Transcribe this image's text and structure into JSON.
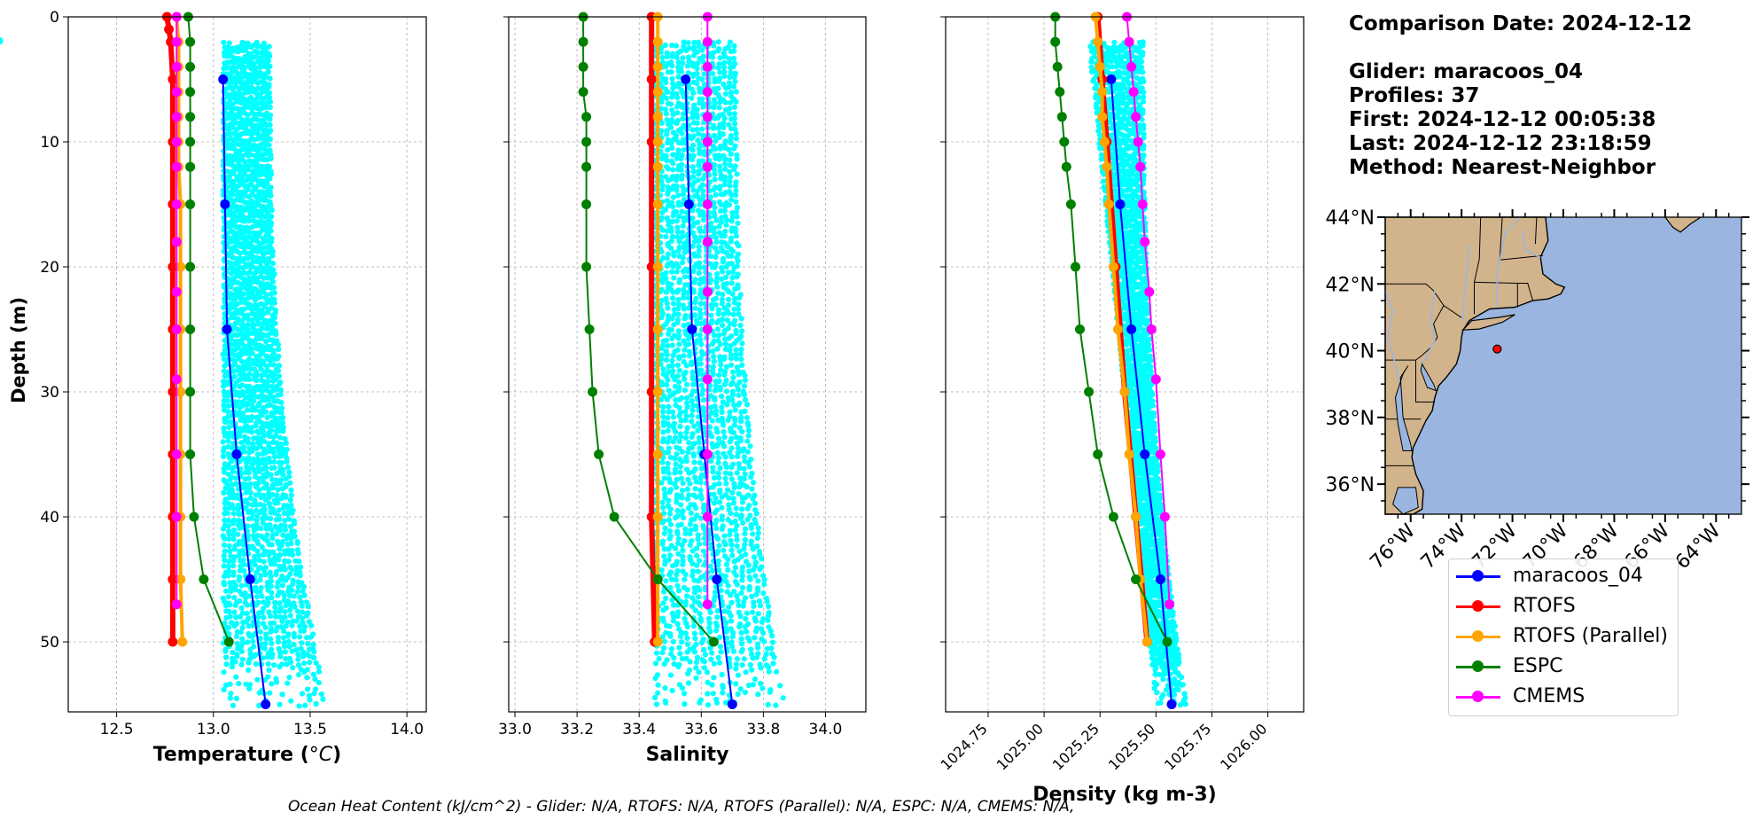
{
  "info": {
    "comparison_date": "Comparison Date: 2024-12-12",
    "glider": "Glider: maracoos_04",
    "profiles": "Profiles: 37",
    "first": "First: 2024-12-12 00:05:38",
    "last": "Last: 2024-12-12 23:18:59",
    "method": "Method: Nearest-Neighbor"
  },
  "footer": "Ocean Heat Content (kJ/cm^2) - Glider: N/A,  RTOFS: N/A,  RTOFS (Parallel): N/A,  ESPC: N/A,  CMEMS: N/A,",
  "colors": {
    "glider_scatter": "#00ffff",
    "glider_mean": "#0000ff",
    "rtofs": "#ff0000",
    "rtofs_parallel": "#ffa500",
    "espc": "#008000",
    "cmems": "#ff00ff",
    "land": "#d2b48c",
    "ocean": "#9ab6e0"
  },
  "legend": [
    {
      "label": "maracoos_04",
      "color": "#0000ff"
    },
    {
      "label": "RTOFS",
      "color": "#ff0000"
    },
    {
      "label": "RTOFS (Parallel)",
      "color": "#ffa500"
    },
    {
      "label": "ESPC",
      "color": "#008000"
    },
    {
      "label": "CMEMS",
      "color": "#ff00ff"
    }
  ],
  "chart_data": [
    {
      "type": "line",
      "xlabel": "Temperature (°C)",
      "ylabel": "Depth (m)",
      "xlim": [
        12.25,
        14.1
      ],
      "ylim": [
        55.6,
        0
      ],
      "xticks": [
        12.5,
        13.0,
        13.5,
        14.0
      ],
      "xtick_labels": [
        "12.5",
        "13.0",
        "13.5",
        "14.0"
      ],
      "yticks": [
        0,
        10,
        20,
        30,
        40,
        50
      ],
      "yinverted": true,
      "grid": true,
      "glider_scatter": {
        "x_range_top": [
          13.05,
          13.3
        ],
        "x_range_bottom": [
          13.05,
          13.6
        ],
        "depth_range": [
          2,
          55
        ]
      },
      "series": [
        {
          "name": "maracoos_04",
          "depth": [
            5,
            15,
            25,
            35,
            45,
            55
          ],
          "values": [
            13.05,
            13.06,
            13.07,
            13.12,
            13.19,
            13.27
          ]
        },
        {
          "name": "RTOFS",
          "depth": [
            0,
            1,
            2,
            5,
            10,
            15,
            20,
            25,
            30,
            35,
            40,
            45,
            50
          ],
          "values": [
            12.76,
            12.77,
            12.78,
            12.79,
            12.79,
            12.79,
            12.79,
            12.79,
            12.79,
            12.79,
            12.79,
            12.79,
            12.79
          ]
        },
        {
          "name": "RTOFS (Parallel)",
          "depth": [
            0,
            2,
            4,
            6,
            8,
            10,
            12,
            15,
            20,
            25,
            30,
            35,
            40,
            45,
            50
          ],
          "values": [
            12.81,
            12.82,
            12.82,
            12.82,
            12.82,
            12.82,
            12.82,
            12.83,
            12.83,
            12.83,
            12.83,
            12.83,
            12.83,
            12.83,
            12.84
          ]
        },
        {
          "name": "ESPC",
          "depth": [
            0,
            2,
            4,
            6,
            8,
            10,
            12,
            15,
            20,
            25,
            30,
            35,
            40,
            45,
            50
          ],
          "values": [
            12.87,
            12.88,
            12.88,
            12.88,
            12.88,
            12.88,
            12.88,
            12.88,
            12.88,
            12.88,
            12.88,
            12.88,
            12.9,
            12.95,
            13.08
          ]
        },
        {
          "name": "CMEMS",
          "depth": [
            0,
            2,
            4,
            6,
            8,
            10,
            12,
            15,
            18,
            22,
            25,
            29,
            35,
            40,
            47
          ],
          "values": [
            12.81,
            12.81,
            12.81,
            12.81,
            12.81,
            12.81,
            12.81,
            12.81,
            12.81,
            12.81,
            12.81,
            12.81,
            12.81,
            12.81,
            12.81
          ]
        }
      ]
    },
    {
      "type": "line",
      "xlabel": "Salinity",
      "ylabel": "",
      "xlim": [
        32.98,
        34.13
      ],
      "ylim": [
        55.6,
        0
      ],
      "xticks": [
        33.0,
        33.2,
        33.4,
        33.6,
        33.8,
        34.0
      ],
      "xtick_labels": [
        "33.0",
        "33.2",
        "33.4",
        "33.6",
        "33.8",
        "34.0"
      ],
      "yinverted": true,
      "grid": true,
      "glider_scatter": {
        "x_range_top": [
          33.45,
          33.72
        ],
        "x_range_bottom": [
          33.45,
          33.88
        ],
        "depth_range": [
          2,
          55
        ]
      },
      "series": [
        {
          "name": "maracoos_04",
          "depth": [
            5,
            15,
            25,
            35,
            45,
            55
          ],
          "values": [
            33.55,
            33.56,
            33.57,
            33.61,
            33.65,
            33.7
          ]
        },
        {
          "name": "RTOFS",
          "depth": [
            0,
            5,
            10,
            20,
            30,
            40,
            50
          ],
          "values": [
            33.44,
            33.44,
            33.44,
            33.44,
            33.44,
            33.44,
            33.45
          ]
        },
        {
          "name": "RTOFS (Parallel)",
          "depth": [
            0,
            2,
            4,
            6,
            8,
            10,
            12,
            15,
            20,
            25,
            30,
            35,
            40,
            45,
            50
          ],
          "values": [
            33.46,
            33.46,
            33.46,
            33.46,
            33.46,
            33.46,
            33.46,
            33.46,
            33.46,
            33.46,
            33.46,
            33.46,
            33.46,
            33.46,
            33.46
          ]
        },
        {
          "name": "ESPC",
          "depth": [
            0,
            2,
            4,
            6,
            8,
            10,
            12,
            15,
            20,
            25,
            30,
            35,
            40,
            45,
            50
          ],
          "values": [
            33.22,
            33.22,
            33.22,
            33.22,
            33.23,
            33.23,
            33.23,
            33.23,
            33.23,
            33.24,
            33.25,
            33.27,
            33.32,
            33.46,
            33.64
          ]
        },
        {
          "name": "CMEMS",
          "depth": [
            0,
            2,
            4,
            6,
            8,
            10,
            12,
            15,
            18,
            22,
            25,
            29,
            35,
            40,
            47
          ],
          "values": [
            33.62,
            33.62,
            33.62,
            33.62,
            33.62,
            33.62,
            33.62,
            33.62,
            33.62,
            33.62,
            33.62,
            33.62,
            33.62,
            33.62,
            33.62
          ]
        }
      ]
    },
    {
      "type": "line",
      "xlabel": "Density (kg m-3)",
      "ylabel": "",
      "xlim": [
        1024.56,
        1026.16
      ],
      "ylim": [
        55.6,
        0
      ],
      "xticks": [
        1024.75,
        1025.0,
        1025.25,
        1025.5,
        1025.75,
        1026.0
      ],
      "xtick_labels": [
        "1024.75",
        "1025.00",
        "1025.25",
        "1025.50",
        "1025.75",
        "1026.00"
      ],
      "yinverted": true,
      "grid": true,
      "glider_scatter": {
        "x_range_top": [
          1025.2,
          1025.45
        ],
        "x_range_bottom": [
          1025.5,
          1025.64
        ],
        "depth_range": [
          2,
          55
        ]
      },
      "series": [
        {
          "name": "maracoos_04",
          "depth": [
            5,
            15,
            25,
            35,
            45,
            55
          ],
          "values": [
            1025.3,
            1025.34,
            1025.39,
            1025.45,
            1025.52,
            1025.57
          ]
        },
        {
          "name": "RTOFS",
          "depth": [
            0,
            5,
            10,
            20,
            30,
            40,
            50
          ],
          "values": [
            1025.24,
            1025.26,
            1025.28,
            1025.32,
            1025.36,
            1025.41,
            1025.46
          ]
        },
        {
          "name": "RTOFS (Parallel)",
          "depth": [
            0,
            2,
            4,
            6,
            8,
            10,
            12,
            15,
            20,
            25,
            30,
            35,
            40,
            45,
            50
          ],
          "values": [
            1025.23,
            1025.24,
            1025.25,
            1025.26,
            1025.26,
            1025.27,
            1025.28,
            1025.29,
            1025.31,
            1025.33,
            1025.36,
            1025.38,
            1025.41,
            1025.43,
            1025.46
          ]
        },
        {
          "name": "ESPC",
          "depth": [
            0,
            2,
            4,
            6,
            8,
            10,
            12,
            15,
            20,
            25,
            30,
            35,
            40,
            45,
            50
          ],
          "values": [
            1025.05,
            1025.05,
            1025.06,
            1025.07,
            1025.08,
            1025.09,
            1025.1,
            1025.12,
            1025.14,
            1025.16,
            1025.2,
            1025.24,
            1025.31,
            1025.41,
            1025.55
          ]
        },
        {
          "name": "CMEMS",
          "depth": [
            0,
            2,
            4,
            6,
            8,
            10,
            12,
            15,
            18,
            22,
            25,
            29,
            35,
            40,
            47
          ],
          "values": [
            1025.37,
            1025.38,
            1025.39,
            1025.4,
            1025.41,
            1025.42,
            1025.43,
            1025.44,
            1025.45,
            1025.47,
            1025.48,
            1025.5,
            1025.52,
            1025.54,
            1025.56
          ]
        }
      ]
    },
    {
      "type": "map",
      "lat_range": [
        35.1,
        44.0
      ],
      "lon_range": [
        -77.0,
        -63.0
      ],
      "yticks": [
        "44°N",
        "42°N",
        "40°N",
        "38°N",
        "36°N"
      ],
      "ytick_values": [
        44,
        42,
        40,
        38,
        36
      ],
      "xticks": [
        "76°W",
        "74°W",
        "72°W",
        "70°W",
        "68°W",
        "66°W",
        "64°W"
      ],
      "xtick_values": [
        -76,
        -74,
        -72,
        -70,
        -68,
        -66,
        -64
      ],
      "glider_position": {
        "lon": -72.6,
        "lat": 40.05
      }
    }
  ]
}
